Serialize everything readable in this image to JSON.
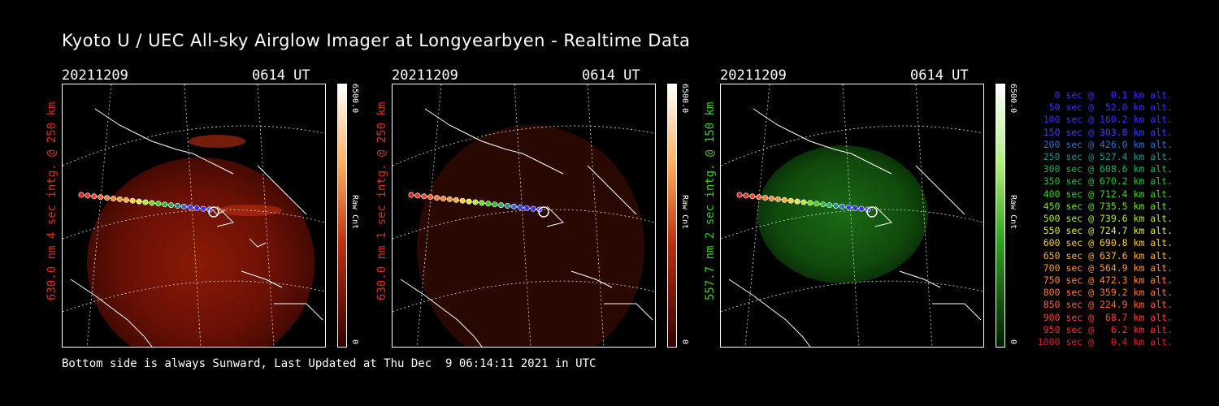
{
  "title": "Kyoto U / UEC All-sky Airglow Imager at Longyearbyen - Realtime Data",
  "footer": "Bottom side is always Sunward, Last Updated at Thu Dec  9 06:14:11 2021 in UTC",
  "panels": [
    {
      "date": "20211209",
      "time": "0614 UT",
      "ylabel": "630.0 nm 4 sec intg. @ 250 km",
      "label_color": "#e03010",
      "cbar_max": "6500.0",
      "cbar_min": "0",
      "cbar_label": "Raw Cnt",
      "cmap": "red"
    },
    {
      "date": "20211209",
      "time": "0614 UT",
      "ylabel": "630.0 nm 1 sec intg. @ 250 km",
      "label_color": "#e03010",
      "cbar_max": "6500.0",
      "cbar_min": "0",
      "cbar_label": "Raw Cnt",
      "cmap": "red"
    },
    {
      "date": "20211209",
      "time": "0614 UT",
      "ylabel": "557.7 nm 2 sec intg. @ 150 km",
      "label_color": "#40d020",
      "cbar_max": "6500.0",
      "cbar_min": "0",
      "cbar_label": "Raw Cnt",
      "cmap": "green"
    }
  ],
  "legend": [
    {
      "text": "0 sec @   0.1 km alt.",
      "color": "#3a2cff"
    },
    {
      "text": "50 sec @  52.0 km alt.",
      "color": "#3a2cff"
    },
    {
      "text": "100 sec @ 160.2 km alt.",
      "color": "#3030ff"
    },
    {
      "text": "150 sec @ 303.8 km alt.",
      "color": "#3040ff"
    },
    {
      "text": "200 sec @ 426.0 km alt.",
      "color": "#3070d0"
    },
    {
      "text": "250 sec @ 527.4 km alt.",
      "color": "#209090"
    },
    {
      "text": "300 sec @ 608.6 km alt.",
      "color": "#20b060"
    },
    {
      "text": "350 sec @ 670.2 km alt.",
      "color": "#30c030"
    },
    {
      "text": "400 sec @ 712.4 km alt.",
      "color": "#40d020"
    },
    {
      "text": "450 sec @ 735.5 km alt.",
      "color": "#70e020"
    },
    {
      "text": "500 sec @ 739.6 km alt.",
      "color": "#b0f030"
    },
    {
      "text": "550 sec @ 724.7 km alt.",
      "color": "#e0f040"
    },
    {
      "text": "600 sec @ 690.8 km alt.",
      "color": "#ffd030"
    },
    {
      "text": "650 sec @ 637.6 km alt.",
      "color": "#ffb030"
    },
    {
      "text": "700 sec @ 564.9 km alt.",
      "color": "#ff9830"
    },
    {
      "text": "750 sec @ 472.3 km alt.",
      "color": "#ff8830"
    },
    {
      "text": "800 sec @ 359.2 km alt.",
      "color": "#ff7830"
    },
    {
      "text": "850 sec @ 224.9 km alt.",
      "color": "#ff6030"
    },
    {
      "text": "900 sec @  68.7 km alt.",
      "color": "#ff4030"
    },
    {
      "text": "950 sec @   6.2 km alt.",
      "color": "#f03020"
    },
    {
      "text": "1000 sec @   0.4 km alt.",
      "color": "#e02020"
    }
  ]
}
